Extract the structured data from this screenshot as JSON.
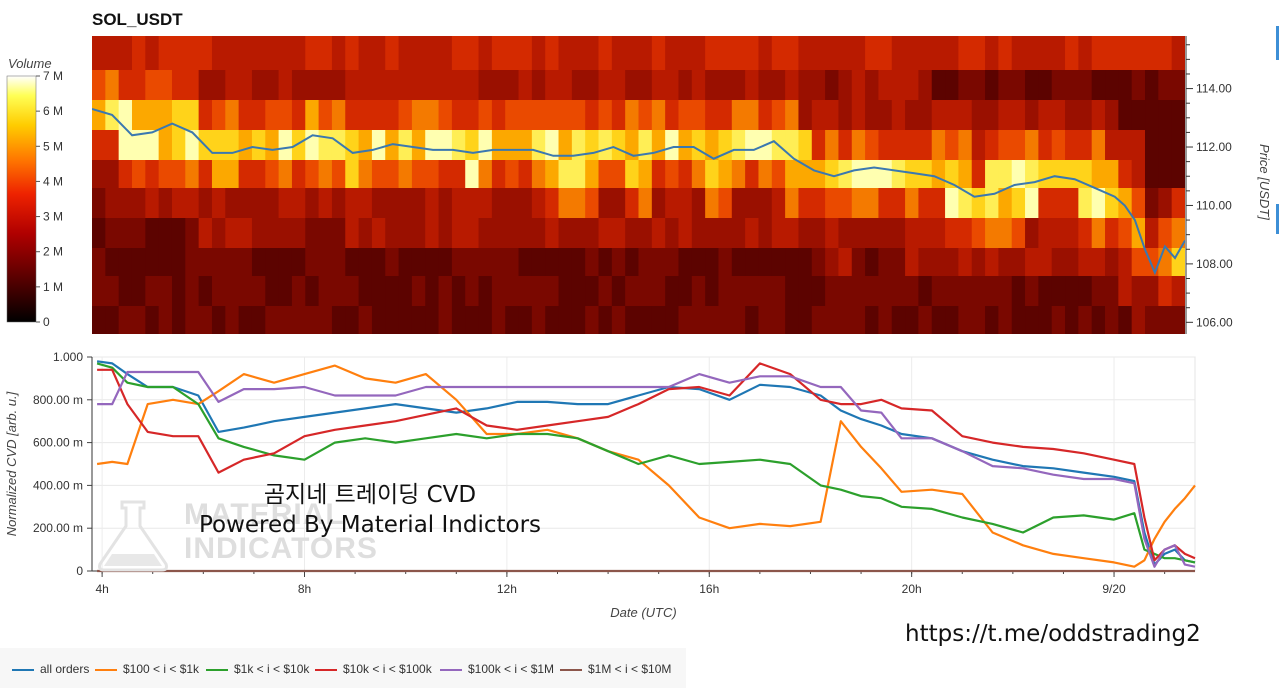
{
  "header": {
    "title": "SOL_USDT"
  },
  "colorbar": {
    "title": "Volume",
    "ticks": [
      "7 M",
      "6 M",
      "5 M",
      "4 M",
      "3 M",
      "2 M",
      "1 M",
      "0"
    ]
  },
  "price_axis": {
    "title": "Price [USDT]",
    "ticks": [
      "114.00",
      "112.00",
      "110.00",
      "108.00",
      "106.00"
    ]
  },
  "cvd_axis": {
    "title": "Normalized CVD [arb. u.]",
    "ticks": [
      "1.000",
      "800.00 m",
      "600.00 m",
      "400.00 m",
      "200.00 m",
      "0"
    ]
  },
  "time_axis": {
    "title": "Date (UTC)",
    "ticks": [
      "4h",
      "8h",
      "12h",
      "16h",
      "20h",
      "9/20"
    ]
  },
  "watermark": {
    "line1": "곰지네 트레이딩 CVD",
    "line2": "Powered By Material Indictors",
    "logo_line1": "MATERIAL",
    "logo_line2": "INDICATORS"
  },
  "link_text": "https://t.me/oddstrading2",
  "legend": {
    "items": [
      {
        "label": "all orders",
        "color": "#1f77b4"
      },
      {
        "label": "$100 < i < $1k",
        "color": "#ff7f0e"
      },
      {
        "label": "$1k < i < $10k",
        "color": "#2ca02c"
      },
      {
        "label": "$10k < i < $100k",
        "color": "#d62728"
      },
      {
        "label": "$100k < i < $1M",
        "color": "#9467bd"
      },
      {
        "label": "$1M < i < $10M",
        "color": "#8c564b"
      }
    ]
  },
  "chart_data": [
    {
      "type": "heatmap",
      "title": "SOL_USDT",
      "xlabel": "",
      "ylabel": "Price [USDT]",
      "colorbar_label": "Volume",
      "x": [
        "4h",
        "8h",
        "12h",
        "16h",
        "20h",
        "9/20"
      ],
      "xlim_hours": [
        3.8,
        25.6
      ],
      "ylim": [
        105.6,
        115.8
      ],
      "colorscale_range": [
        0,
        7000000
      ],
      "price_line": {
        "color": "#3a78b0",
        "hours": [
          3.8,
          4.2,
          4.6,
          5.0,
          5.4,
          5.8,
          6.2,
          6.6,
          7.0,
          7.4,
          7.8,
          8.2,
          8.6,
          9.0,
          9.4,
          9.8,
          10.2,
          10.6,
          11.0,
          11.4,
          11.8,
          12.2,
          12.6,
          13.0,
          13.4,
          13.8,
          14.2,
          14.6,
          15.0,
          15.4,
          15.8,
          16.2,
          16.6,
          17.0,
          17.4,
          17.8,
          18.2,
          18.6,
          19.0,
          19.4,
          19.8,
          20.2,
          20.6,
          21.0,
          21.4,
          21.8,
          22.2,
          22.6,
          23.0,
          23.4,
          23.8,
          24.2,
          24.4,
          24.6,
          24.8,
          25.0,
          25.2,
          25.4,
          25.6
        ],
        "values": [
          113.3,
          113.1,
          112.4,
          112.5,
          112.8,
          112.5,
          111.8,
          111.8,
          112.0,
          111.9,
          112.0,
          112.4,
          112.3,
          111.8,
          111.9,
          112.1,
          112.0,
          111.9,
          111.9,
          111.8,
          111.9,
          111.9,
          111.9,
          111.7,
          111.7,
          111.8,
          112.0,
          111.7,
          111.8,
          112.0,
          112.0,
          111.6,
          111.9,
          111.9,
          112.2,
          111.6,
          111.2,
          111.0,
          111.2,
          111.3,
          111.2,
          111.1,
          111.0,
          110.7,
          110.3,
          110.4,
          110.7,
          110.8,
          111.0,
          110.9,
          110.6,
          110.3,
          110.0,
          109.5,
          108.5,
          107.7,
          108.6,
          108.2,
          108.8
        ]
      }
    },
    {
      "type": "line",
      "title": "",
      "xlabel": "Date (UTC)",
      "ylabel": "Normalized CVD [arb. u.]",
      "ylim": [
        0,
        1.0
      ],
      "xlim_hours": [
        3.8,
        25.6
      ],
      "x": [
        3.9,
        4.2,
        4.5,
        4.9,
        5.4,
        5.9,
        6.3,
        6.8,
        7.4,
        8.0,
        8.6,
        9.2,
        9.8,
        10.4,
        11.0,
        11.6,
        12.2,
        12.8,
        13.4,
        14.0,
        14.6,
        15.2,
        15.8,
        16.4,
        17.0,
        17.6,
        18.2,
        18.6,
        19.0,
        19.4,
        19.8,
        20.4,
        21.0,
        21.6,
        22.2,
        22.8,
        23.4,
        24.0,
        24.4,
        24.6,
        24.8,
        25.0,
        25.2,
        25.4,
        25.6
      ],
      "series": [
        {
          "name": "all orders",
          "color": "#1f77b4",
          "values": [
            0.98,
            0.97,
            0.92,
            0.86,
            0.86,
            0.82,
            0.65,
            0.67,
            0.7,
            0.72,
            0.74,
            0.76,
            0.78,
            0.76,
            0.74,
            0.76,
            0.79,
            0.79,
            0.78,
            0.78,
            0.82,
            0.86,
            0.85,
            0.8,
            0.87,
            0.86,
            0.82,
            0.75,
            0.71,
            0.68,
            0.64,
            0.62,
            0.56,
            0.52,
            0.49,
            0.48,
            0.46,
            0.44,
            0.42,
            0.18,
            0.03,
            0.08,
            0.1,
            0.05,
            0.04
          ]
        },
        {
          "name": "$100 < i < $1k",
          "color": "#ff7f0e",
          "values": [
            0.5,
            0.51,
            0.5,
            0.78,
            0.8,
            0.78,
            0.84,
            0.92,
            0.88,
            0.92,
            0.96,
            0.9,
            0.88,
            0.92,
            0.8,
            0.64,
            0.64,
            0.66,
            0.62,
            0.56,
            0.52,
            0.4,
            0.25,
            0.2,
            0.22,
            0.21,
            0.23,
            0.7,
            0.58,
            0.48,
            0.37,
            0.38,
            0.36,
            0.18,
            0.12,
            0.08,
            0.06,
            0.04,
            0.02,
            0.05,
            0.15,
            0.23,
            0.29,
            0.34,
            0.4
          ]
        },
        {
          "name": "$1k < i < $10k",
          "color": "#2ca02c",
          "values": [
            0.97,
            0.95,
            0.88,
            0.86,
            0.86,
            0.78,
            0.62,
            0.58,
            0.54,
            0.52,
            0.6,
            0.62,
            0.6,
            0.62,
            0.64,
            0.62,
            0.64,
            0.64,
            0.62,
            0.56,
            0.5,
            0.54,
            0.5,
            0.51,
            0.52,
            0.5,
            0.4,
            0.38,
            0.35,
            0.34,
            0.3,
            0.29,
            0.25,
            0.22,
            0.18,
            0.25,
            0.26,
            0.24,
            0.27,
            0.1,
            0.08,
            0.06,
            0.06,
            0.05,
            0.04
          ]
        },
        {
          "name": "$10k < i < $100k",
          "color": "#d62728",
          "values": [
            0.94,
            0.94,
            0.78,
            0.65,
            0.63,
            0.63,
            0.46,
            0.52,
            0.55,
            0.63,
            0.66,
            0.68,
            0.7,
            0.73,
            0.76,
            0.68,
            0.66,
            0.68,
            0.7,
            0.72,
            0.78,
            0.85,
            0.86,
            0.82,
            0.97,
            0.92,
            0.8,
            0.78,
            0.78,
            0.8,
            0.76,
            0.75,
            0.63,
            0.6,
            0.58,
            0.57,
            0.55,
            0.52,
            0.5,
            0.25,
            0.05,
            0.1,
            0.12,
            0.08,
            0.06
          ]
        },
        {
          "name": "$100k < i < $1M",
          "color": "#9467bd",
          "values": [
            0.78,
            0.78,
            0.93,
            0.93,
            0.93,
            0.93,
            0.79,
            0.85,
            0.85,
            0.86,
            0.82,
            0.82,
            0.82,
            0.86,
            0.86,
            0.86,
            0.86,
            0.86,
            0.86,
            0.86,
            0.86,
            0.86,
            0.92,
            0.88,
            0.91,
            0.91,
            0.86,
            0.86,
            0.75,
            0.74,
            0.62,
            0.62,
            0.56,
            0.49,
            0.48,
            0.45,
            0.43,
            0.43,
            0.41,
            0.15,
            0.02,
            0.1,
            0.12,
            0.03,
            0.02
          ]
        },
        {
          "name": "$1M < i < $10M",
          "color": "#8c564b",
          "values": [
            0.0,
            0.0,
            0.0,
            0.0,
            0.0,
            0.0,
            0.0,
            0.0,
            0.0,
            0.0,
            0.0,
            0.0,
            0.0,
            0.0,
            0.0,
            0.0,
            0.0,
            0.0,
            0.0,
            0.0,
            0.0,
            0.0,
            0.0,
            0.0,
            0.0,
            0.0,
            0.0,
            0.0,
            0.0,
            0.0,
            0.0,
            0.0,
            0.0,
            0.0,
            0.0,
            0.0,
            0.0,
            0.0,
            0.0,
            0.0,
            0.0,
            0.0,
            0.0,
            0.0,
            0.0
          ]
        }
      ]
    }
  ]
}
